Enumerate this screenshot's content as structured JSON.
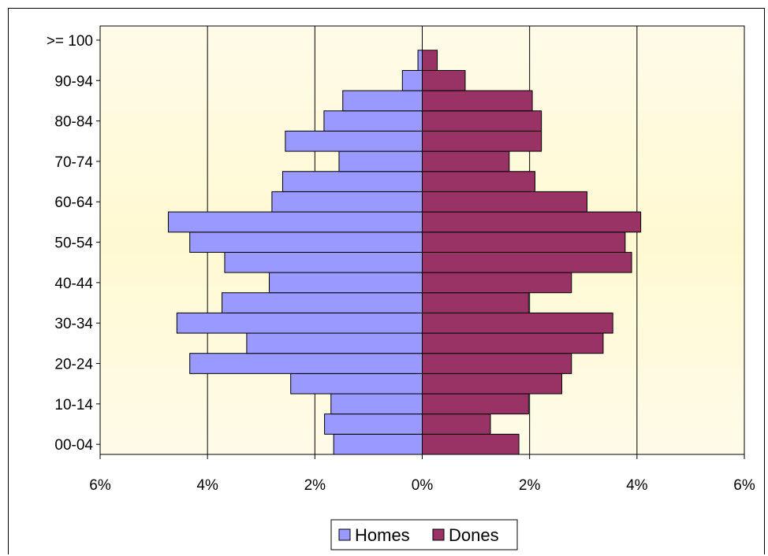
{
  "chart_data": {
    "type": "bar",
    "orientation": "horizontal",
    "layout": "population-pyramid",
    "categories": [
      "00-04",
      "05-09",
      "10-14",
      "15-19",
      "20-24",
      "25-29",
      "30-34",
      "35-39",
      "40-44",
      "45-49",
      "50-54",
      "55-59",
      "60-64",
      "65-69",
      "70-74",
      "75-79",
      "80-84",
      "85-89",
      "90-94",
      "95-99",
      ">= 100"
    ],
    "y_tick_labels": [
      "00-04",
      "10-14",
      "20-24",
      "30-34",
      "40-44",
      "50-54",
      "60-64",
      "70-74",
      "80-84",
      "90-94",
      ">= 100"
    ],
    "x_tick_labels": [
      "6%",
      "4%",
      "2%",
      "0%",
      "2%",
      "4%",
      "6%"
    ],
    "xlim": [
      -6,
      6
    ],
    "grid": true,
    "legend_position": "bottom",
    "series": [
      {
        "name": "Homes",
        "color": "#9999ff",
        "side": "left",
        "values": [
          1.65,
          1.82,
          1.7,
          2.45,
          4.33,
          3.27,
          4.57,
          3.73,
          2.85,
          3.68,
          4.33,
          4.73,
          2.8,
          2.6,
          1.55,
          2.55,
          1.83,
          1.48,
          0.37,
          0.08,
          0.0
        ]
      },
      {
        "name": "Dones",
        "color": "#993366",
        "side": "right",
        "values": [
          1.8,
          1.27,
          1.98,
          2.6,
          2.78,
          3.37,
          3.55,
          1.98,
          2.78,
          3.9,
          3.78,
          4.07,
          3.07,
          2.1,
          1.62,
          2.22,
          2.22,
          2.05,
          0.8,
          0.28,
          0.0
        ]
      }
    ]
  }
}
